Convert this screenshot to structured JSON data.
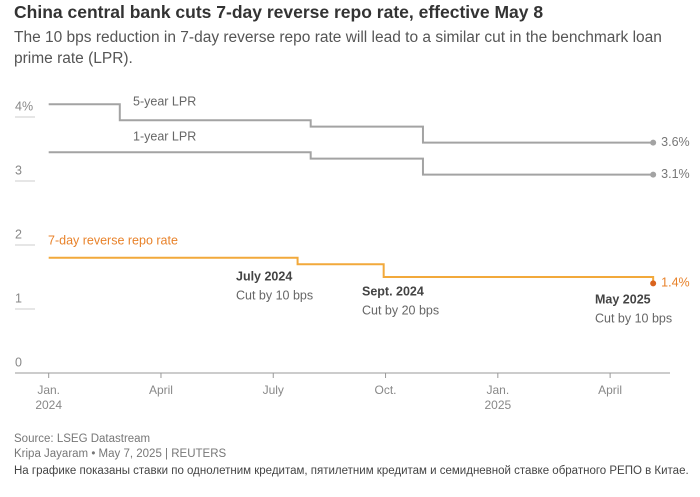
{
  "chart_data": {
    "type": "line",
    "title": "China central bank cuts 7-day reverse repo rate, effective May 8",
    "subtitle": "The 10 bps reduction in 7-day reverse repo rate will lead to a similar cut in the benchmark loan prime rate (LPR).",
    "xlim": [
      -0.9,
      16.6
    ],
    "xticks": [
      {
        "value": 0,
        "label": "Jan.\n2024"
      },
      {
        "value": 3,
        "label": "April"
      },
      {
        "value": 6,
        "label": "July"
      },
      {
        "value": 9,
        "label": "Oct."
      },
      {
        "value": 12,
        "label": "Jan.\n2025"
      },
      {
        "value": 15,
        "label": "April"
      }
    ],
    "ylim": [
      0,
      4.5
    ],
    "yticks": [
      {
        "value": 4,
        "label": "4%"
      },
      3,
      2,
      1,
      0
    ],
    "series": [
      {
        "name": "5-year LPR",
        "color": "#a3a3a3",
        "x": [
          0,
          1.9,
          1.9,
          7.0,
          7.0,
          10.0,
          10.0,
          16.15
        ],
        "values": [
          4.2,
          4.2,
          3.95,
          3.95,
          3.85,
          3.85,
          3.6,
          3.6
        ],
        "value_labels": [
          null,
          null,
          null,
          null,
          null,
          null,
          null,
          "3.6%"
        ]
      },
      {
        "name": "1-year LPR",
        "color": "#a3a3a3",
        "x": [
          0,
          7.0,
          7.0,
          10.0,
          10.0,
          16.15
        ],
        "values": [
          3.45,
          3.45,
          3.35,
          3.35,
          3.1,
          3.1
        ],
        "value_labels": [
          null,
          null,
          null,
          null,
          null,
          "3.1%"
        ]
      },
      {
        "name": "7-day reverse repo rate",
        "color": "#f2a93b",
        "x": [
          0,
          6.65,
          6.65,
          8.95,
          8.95,
          16.15,
          16.15
        ],
        "values": [
          1.8,
          1.8,
          1.7,
          1.7,
          1.5,
          1.5,
          1.4
        ],
        "value_labels": [
          null,
          null,
          null,
          null,
          null,
          null,
          "1.4%"
        ]
      }
    ],
    "annotations": [
      {
        "title": "July 2024",
        "text": "Cut by 10 bps"
      },
      {
        "title": "Sept. 2024",
        "text": "Cut by 20 bps"
      },
      {
        "title": "May 2025",
        "text": "Cut by 10 bps"
      }
    ],
    "source": "Source: LSEG Datastream",
    "byline": "Kripa Jayaram • May 7, 2025 | REUTERS",
    "note": "На графике показаны ставки по однолетним кредитам, пятилетним кредитам и семидневной ставке обратного РЕПО в Китае."
  }
}
